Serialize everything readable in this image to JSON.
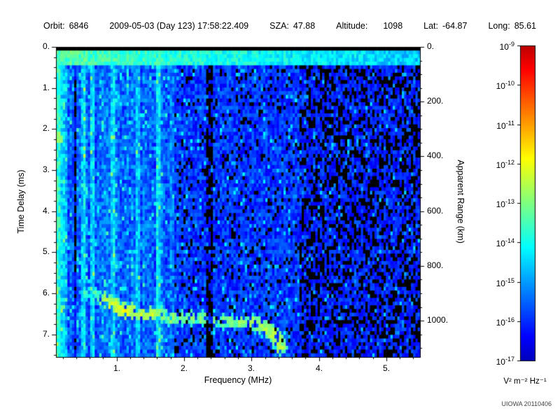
{
  "header": {
    "fields": [
      {
        "label": "Orbit:",
        "value": "6846"
      },
      {
        "label": "",
        "value": "2009-05-03 (Day 123) 17:58:22.409"
      },
      {
        "label": "SZA:",
        "value": "47.88"
      },
      {
        "label": "Altitude:",
        "value": "1098",
        "wide": true
      },
      {
        "label": "Lat:",
        "value": "-64.87"
      },
      {
        "label": "Long:",
        "value": "85.61"
      }
    ]
  },
  "chart_data": {
    "type": "heatmap",
    "title": "",
    "xlabel": "Frequency (MHz)",
    "ylabel": "Time Delay (ms)",
    "y2label": "Apparent Range (km)",
    "x_range_mhz": [
      0.1,
      5.5
    ],
    "y_range_ms": [
      0,
      7.55
    ],
    "y2_range_km": [
      0,
      1132
    ],
    "x_ticks": [
      {
        "value": 1,
        "label": "1."
      },
      {
        "value": 2,
        "label": "2."
      },
      {
        "value": 3,
        "label": "3."
      },
      {
        "value": 4,
        "label": "4."
      },
      {
        "value": 5,
        "label": "5."
      }
    ],
    "y_ticks": [
      {
        "value": 0,
        "label": "0."
      },
      {
        "value": 1,
        "label": "1."
      },
      {
        "value": 2,
        "label": "2."
      },
      {
        "value": 3,
        "label": "3."
      },
      {
        "value": 4,
        "label": "4."
      },
      {
        "value": 5,
        "label": "5."
      },
      {
        "value": 6,
        "label": "6."
      },
      {
        "value": 7,
        "label": "7."
      }
    ],
    "y2_ticks": [
      {
        "km": 0,
        "label": "0."
      },
      {
        "km": 200,
        "label": "200."
      },
      {
        "km": 400,
        "label": "400."
      },
      {
        "km": 600,
        "label": "600."
      },
      {
        "km": 800,
        "label": "800."
      },
      {
        "km": 1000,
        "label": "1000."
      }
    ],
    "colorbar": {
      "scale": "log",
      "base": "10",
      "tick_exponents": [
        "-9",
        "-10",
        "-11",
        "-12",
        "-13",
        "-14",
        "-15",
        "-16",
        "-17"
      ],
      "unit": "V² m⁻² Hz⁻¹",
      "colormap": "jet",
      "min": "1e-17",
      "max": "1e-9"
    },
    "features": {
      "black_top_ms": 0.12,
      "surface_band_ms": [
        0.12,
        0.48
      ],
      "bright_bands_mhz": [
        0.15,
        0.25,
        0.5,
        0.65,
        0.95,
        1.3,
        1.62
      ],
      "dark_bands_mhz": [
        0.38,
        2.37
      ],
      "noise_regions": [
        {
          "f_mhz": [
            0.1,
            1.85
          ],
          "level": "medium blue with cyan vertical striping"
        },
        {
          "f_mhz": [
            1.85,
            3.7
          ],
          "level": "dark blue speckle"
        },
        {
          "f_mhz": [
            3.7,
            5.5
          ],
          "level": "darkest blue with black patches"
        }
      ],
      "echo_trace": [
        [
          0.55,
          5.95,
          0.38
        ],
        [
          0.68,
          6.05,
          0.4
        ],
        [
          0.8,
          6.1,
          0.5
        ],
        [
          0.9,
          6.2,
          0.55
        ],
        [
          1.0,
          6.3,
          0.57
        ],
        [
          1.1,
          6.35,
          0.57
        ],
        [
          1.22,
          6.4,
          0.55
        ],
        [
          1.35,
          6.45,
          0.52
        ],
        [
          1.5,
          6.5,
          0.55
        ],
        [
          1.65,
          6.5,
          0.5
        ],
        [
          1.8,
          6.55,
          0.48
        ],
        [
          1.95,
          6.58,
          0.46
        ],
        [
          2.1,
          6.6,
          0.46
        ],
        [
          2.25,
          6.6,
          0.46
        ],
        [
          2.4,
          6.62,
          0.45
        ],
        [
          2.55,
          6.64,
          0.46
        ],
        [
          2.7,
          6.65,
          0.47
        ],
        [
          2.85,
          6.66,
          0.48
        ],
        [
          3.0,
          6.68,
          0.5
        ],
        [
          3.1,
          6.72,
          0.5
        ],
        [
          3.2,
          6.8,
          0.5
        ],
        [
          3.3,
          6.95,
          0.52
        ],
        [
          3.38,
          7.1,
          0.52
        ],
        [
          3.42,
          7.25,
          0.5
        ]
      ],
      "blobs": [
        [
          0.14,
          2.15,
          0.5
        ]
      ]
    }
  },
  "watermark": "UIOWA 20110406",
  "colors": {
    "background": "#ffffff",
    "frame": "#000000",
    "text": "#000000"
  }
}
